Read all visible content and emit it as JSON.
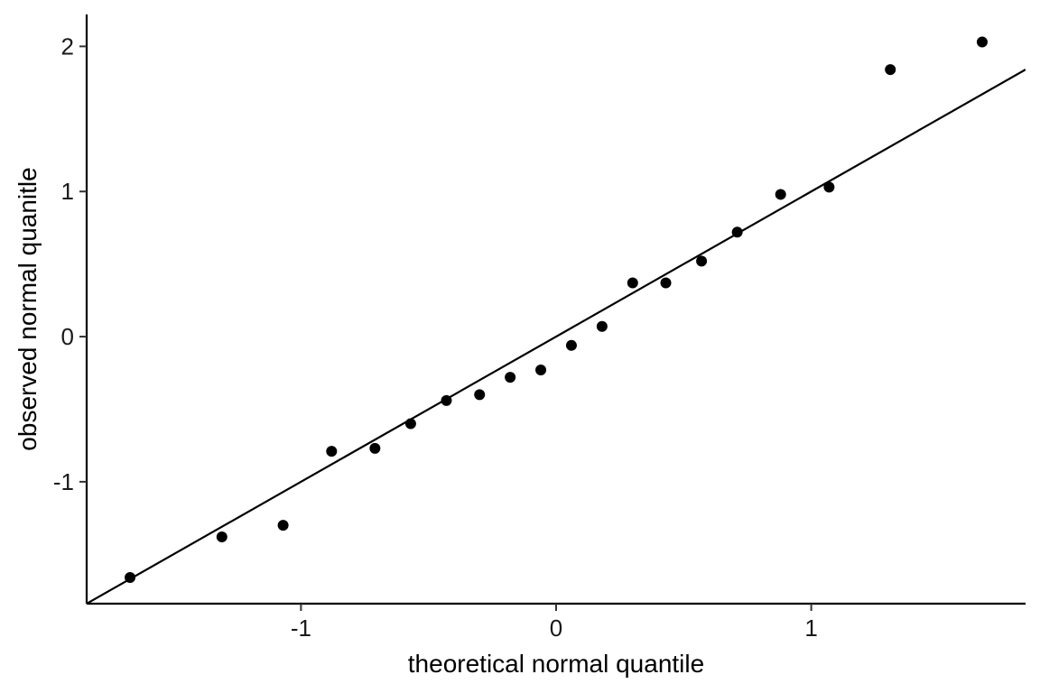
{
  "chart_data": {
    "type": "scatter",
    "title": "",
    "xlabel": "theoretical normal quantile",
    "ylabel": "observed normal quanitle",
    "xlim": [
      -1.84,
      1.84
    ],
    "ylim": [
      -1.84,
      2.22
    ],
    "x_ticks": [
      -1,
      0,
      1
    ],
    "y_ticks": [
      -1,
      0,
      1,
      2
    ],
    "grid": false,
    "legend": "none",
    "point_color": "#000000",
    "series": [
      {
        "x": [
          -1.67,
          -1.31,
          -1.07,
          -0.88,
          -0.71,
          -0.57,
          -0.43,
          -0.3,
          -0.18,
          -0.06,
          0.06,
          0.18,
          0.3,
          0.43,
          0.57,
          0.71,
          0.88,
          1.07,
          1.31,
          1.67
        ],
        "y": [
          -1.66,
          -1.38,
          -1.3,
          -0.79,
          -0.77,
          -0.6,
          -0.44,
          -0.4,
          -0.28,
          -0.23,
          -0.06,
          0.07,
          0.37,
          0.37,
          0.52,
          0.72,
          0.98,
          1.03,
          1.84,
          2.03
        ]
      }
    ],
    "reference_line": {
      "intercept": 0.0,
      "slope": 1.0
    }
  }
}
